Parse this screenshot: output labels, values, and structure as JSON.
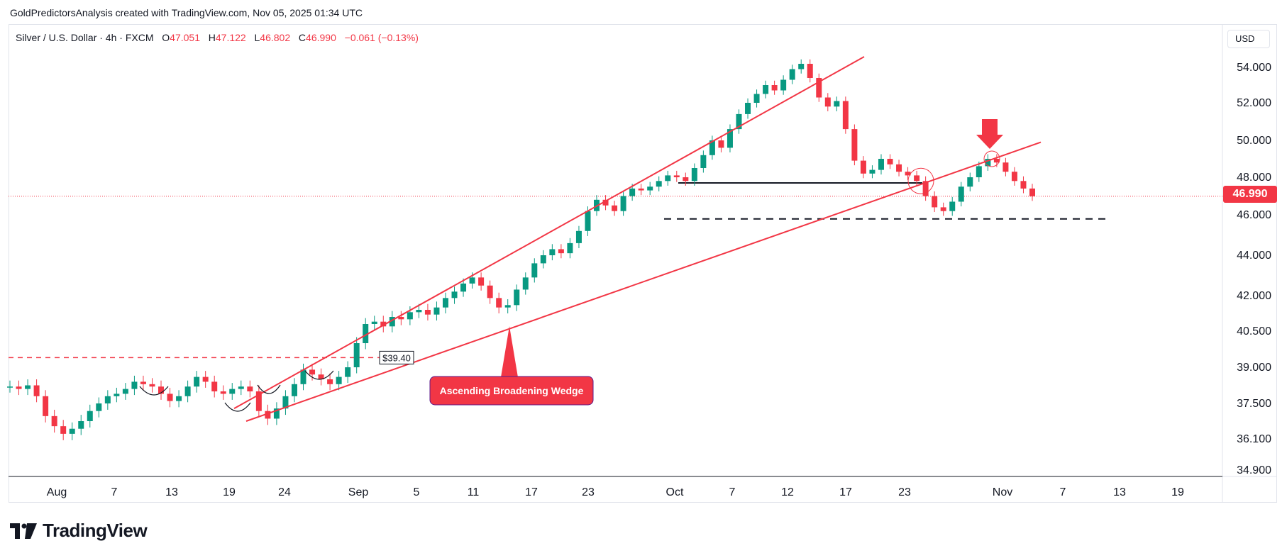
{
  "header": {
    "caption": "GoldPredictorsAnalysis created with TradingView.com, Nov 05, 2025 01:34 UTC"
  },
  "symbol": {
    "name": "Silver / U.S. Dollar · 4h · FXCM",
    "open_label": "O",
    "open": "47.051",
    "high_label": "H",
    "high": "47.122",
    "low_label": "L",
    "low": "46.802",
    "close_label": "C",
    "close": "46.990",
    "change": "−0.061 (−0.13%)"
  },
  "currency": "USD",
  "last_price": "46.990",
  "brand": {
    "name": "TradingView"
  },
  "colors": {
    "up": "#089981",
    "down": "#f23645",
    "trend": "#f23645",
    "accent": "#f23645",
    "text": "#131722"
  },
  "chart_data": {
    "type": "line",
    "title": "Silver / U.S. Dollar · 4h · FXCM",
    "y_ticks": [
      "54.000",
      "52.000",
      "50.000",
      "48.000",
      "46.000",
      "44.000",
      "42.000",
      "40.500",
      "39.000",
      "37.500",
      "36.100",
      "34.900"
    ],
    "x_ticks": [
      "Aug",
      "7",
      "13",
      "19",
      "24",
      "Sep",
      "5",
      "11",
      "17",
      "23",
      "Oct",
      "7",
      "12",
      "17",
      "23",
      "Nov",
      "7",
      "13",
      "19"
    ],
    "series": [
      {
        "values": [
          38.2,
          38.1,
          38.25,
          37.8,
          37.0,
          36.6,
          36.3,
          36.5,
          36.8,
          37.2,
          37.5,
          37.8,
          37.9,
          38.1,
          38.4,
          38.3,
          38.2,
          37.9,
          37.6,
          37.8,
          38.2,
          38.6,
          38.4,
          38.0,
          37.9,
          38.1,
          38.2,
          38.0,
          37.2,
          36.9,
          37.3,
          37.8,
          38.3,
          38.9,
          38.7,
          38.5,
          38.3,
          38.6,
          39.0,
          40.0,
          40.8,
          40.9,
          40.7,
          41.1,
          41.0,
          41.3,
          41.4,
          41.2,
          41.5,
          41.9,
          42.2,
          42.6,
          42.9,
          42.5,
          41.9,
          41.5,
          41.6,
          42.3,
          42.9,
          43.6,
          44.0,
          44.3,
          44.1,
          44.6,
          45.2,
          46.2,
          46.8,
          46.5,
          46.2,
          47.0,
          47.4,
          47.3,
          47.5,
          47.8,
          48.1,
          48.0,
          47.8,
          48.5,
          49.2,
          50.0,
          49.6,
          50.6,
          51.4,
          52.0,
          52.5,
          53.0,
          52.7,
          53.3,
          53.9,
          54.2,
          53.4,
          52.3,
          51.8,
          52.1,
          50.6,
          48.9,
          48.2,
          48.4,
          49.0,
          48.7,
          48.3,
          48.1,
          47.8,
          47.0,
          46.4,
          46.2,
          46.7,
          47.5,
          48.0,
          48.6,
          49.0,
          48.8,
          48.3,
          47.8,
          47.4,
          46.99
        ]
      }
    ],
    "annotations": {
      "pattern_label": "Ascending Broadening Wedge",
      "level_label": "$39.40",
      "resistance_level": 39.4,
      "support_level": 45.8,
      "neckline_level": 47.7
    },
    "grid": false,
    "legend": "none"
  }
}
